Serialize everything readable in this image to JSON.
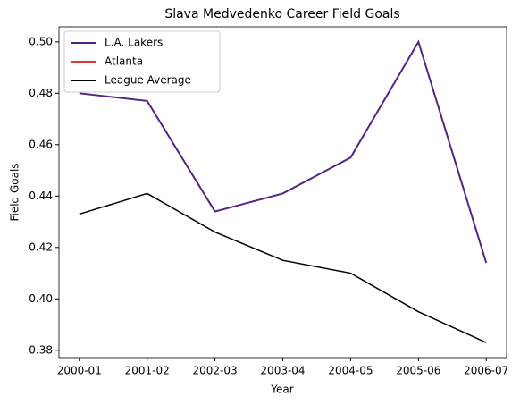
{
  "chart_data": {
    "type": "line",
    "title": "Slava Medvedenko Career Field Goals",
    "xlabel": "Year",
    "ylabel": "Field Goals",
    "categories": [
      "2000-01",
      "2001-02",
      "2002-03",
      "2003-04",
      "2004-05",
      "2005-06",
      "2006-07"
    ],
    "series": [
      {
        "name": "L.A. Lakers",
        "color": "#552583",
        "values": [
          0.48,
          0.477,
          0.434,
          0.441,
          0.455,
          0.5,
          0.414
        ]
      },
      {
        "name": "Atlanta",
        "color": "#d63a3a",
        "values": [
          null,
          null,
          null,
          null,
          null,
          null,
          null
        ]
      },
      {
        "name": "League Average",
        "color": "#000000",
        "values": [
          0.433,
          0.441,
          0.426,
          0.415,
          0.41,
          0.395,
          0.383
        ]
      }
    ],
    "ylim": [
      0.37715,
      0.50585
    ],
    "yticks": [
      0.38,
      {
        "value": 0.4,
        "label": "0.40"
      },
      0.42,
      0.44,
      0.46,
      0.48,
      {
        "value": 0.5,
        "label": "0.50"
      }
    ],
    "legend": "upper left"
  }
}
